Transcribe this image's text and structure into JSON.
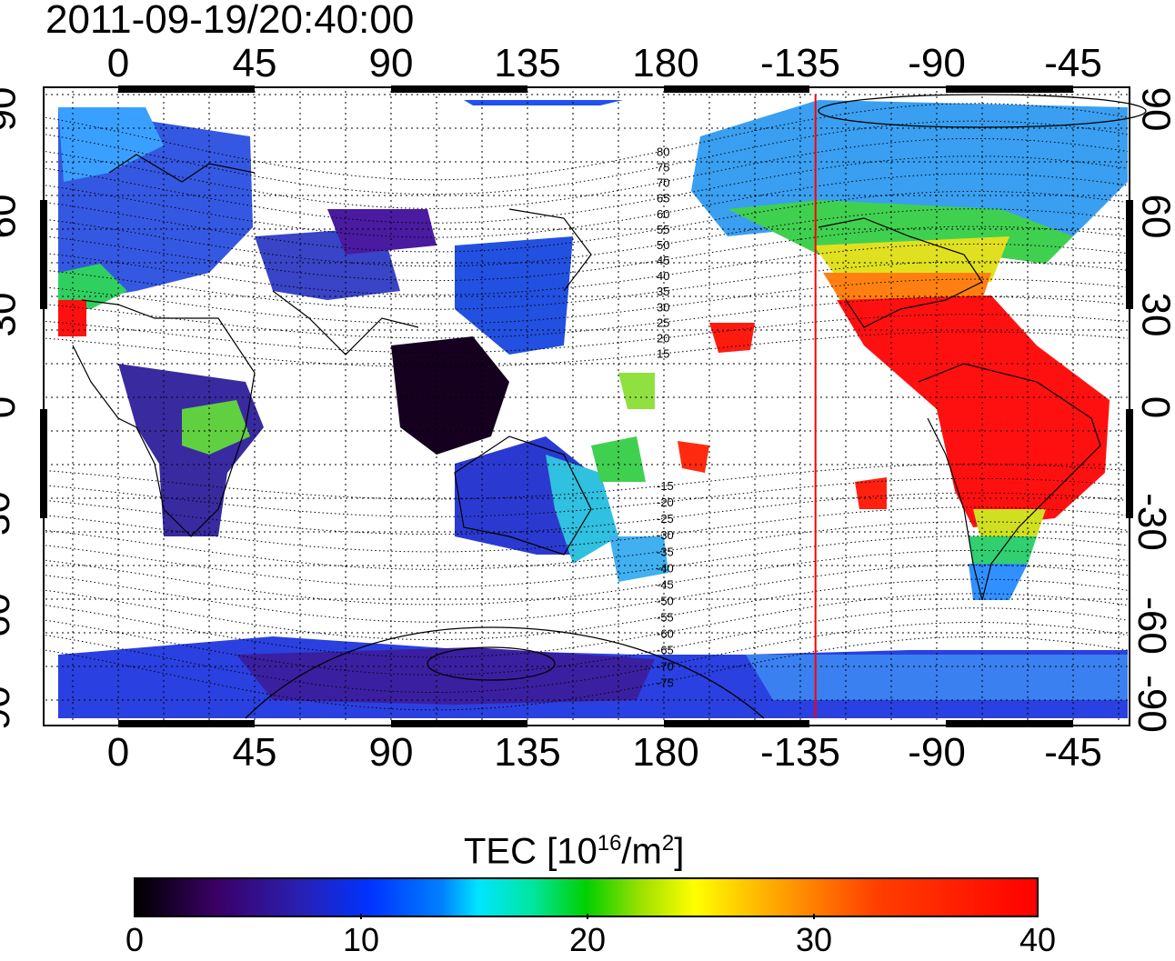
{
  "title": "2011-09-19/20:40:00",
  "top_lon_ticks": [
    "0",
    "45",
    "90",
    "135",
    "180",
    "-135",
    "-90",
    "-45"
  ],
  "bottom_lon_ticks": [
    "0",
    "45",
    "90",
    "135",
    "180",
    "-135",
    "-90",
    "-45"
  ],
  "lat_ticks": [
    "90",
    "60",
    "30",
    "0",
    "-30",
    "-60",
    "-90"
  ],
  "contour_labels": [
    "80",
    "75",
    "70",
    "65",
    "60",
    "55",
    "50",
    "45",
    "40",
    "35",
    "30",
    "25",
    "20",
    "15",
    "-15",
    "-20",
    "-25",
    "-30",
    "-35",
    "-40",
    "-45",
    "-50",
    "-55",
    "-60",
    "-65",
    "-70",
    "-75"
  ],
  "colorbar": {
    "label_main": "TEC  [10",
    "label_sup1": "16",
    "label_mid": "/m",
    "label_sup2": "2",
    "label_end": "]",
    "ticks": [
      "0",
      "10",
      "20",
      "30",
      "40"
    ],
    "min": 0,
    "max": 40
  },
  "terminator_longitude": -130,
  "colors": {
    "terminator": "#ff0000",
    "tec_low": "#000000",
    "tec_high": "#ff0000"
  }
}
